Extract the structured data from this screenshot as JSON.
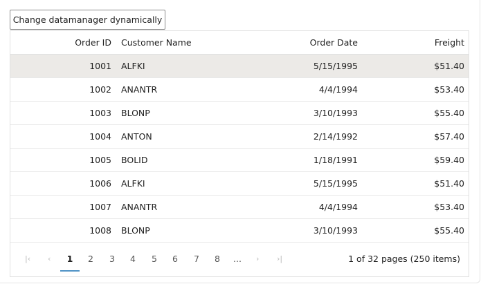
{
  "toolbar": {
    "change_button_label": "Change datamanager dynamically"
  },
  "grid": {
    "columns": {
      "order_id": "Order ID",
      "customer_name": "Customer Name",
      "order_date": "Order Date",
      "freight": "Freight"
    },
    "rows": [
      {
        "order_id": "1001",
        "customer_name": "ALFKI",
        "order_date": "5/15/1995",
        "freight": "$51.40",
        "selected": true
      },
      {
        "order_id": "1002",
        "customer_name": "ANANTR",
        "order_date": "4/4/1994",
        "freight": "$53.40"
      },
      {
        "order_id": "1003",
        "customer_name": "BLONP",
        "order_date": "3/10/1993",
        "freight": "$55.40"
      },
      {
        "order_id": "1004",
        "customer_name": "ANTON",
        "order_date": "2/14/1992",
        "freight": "$57.40"
      },
      {
        "order_id": "1005",
        "customer_name": "BOLID",
        "order_date": "1/18/1991",
        "freight": "$59.40"
      },
      {
        "order_id": "1006",
        "customer_name": "ALFKI",
        "order_date": "5/15/1995",
        "freight": "$51.40"
      },
      {
        "order_id": "1007",
        "customer_name": "ANANTR",
        "order_date": "4/4/1994",
        "freight": "$53.40"
      },
      {
        "order_id": "1008",
        "customer_name": "BLONP",
        "order_date": "3/10/1993",
        "freight": "$55.40"
      }
    ]
  },
  "pager": {
    "icons": {
      "first": "first-page-icon",
      "prev": "previous-page-icon",
      "next": "next-page-icon",
      "last": "last-page-icon"
    },
    "pages": [
      "1",
      "2",
      "3",
      "4",
      "5",
      "6",
      "7",
      "8"
    ],
    "current_page": "1",
    "ellipsis": "...",
    "info": "1 of 32 pages (250 items)"
  },
  "colors": {
    "selected_row": "#eceae7",
    "active_page_underline": "#4f93c6"
  }
}
